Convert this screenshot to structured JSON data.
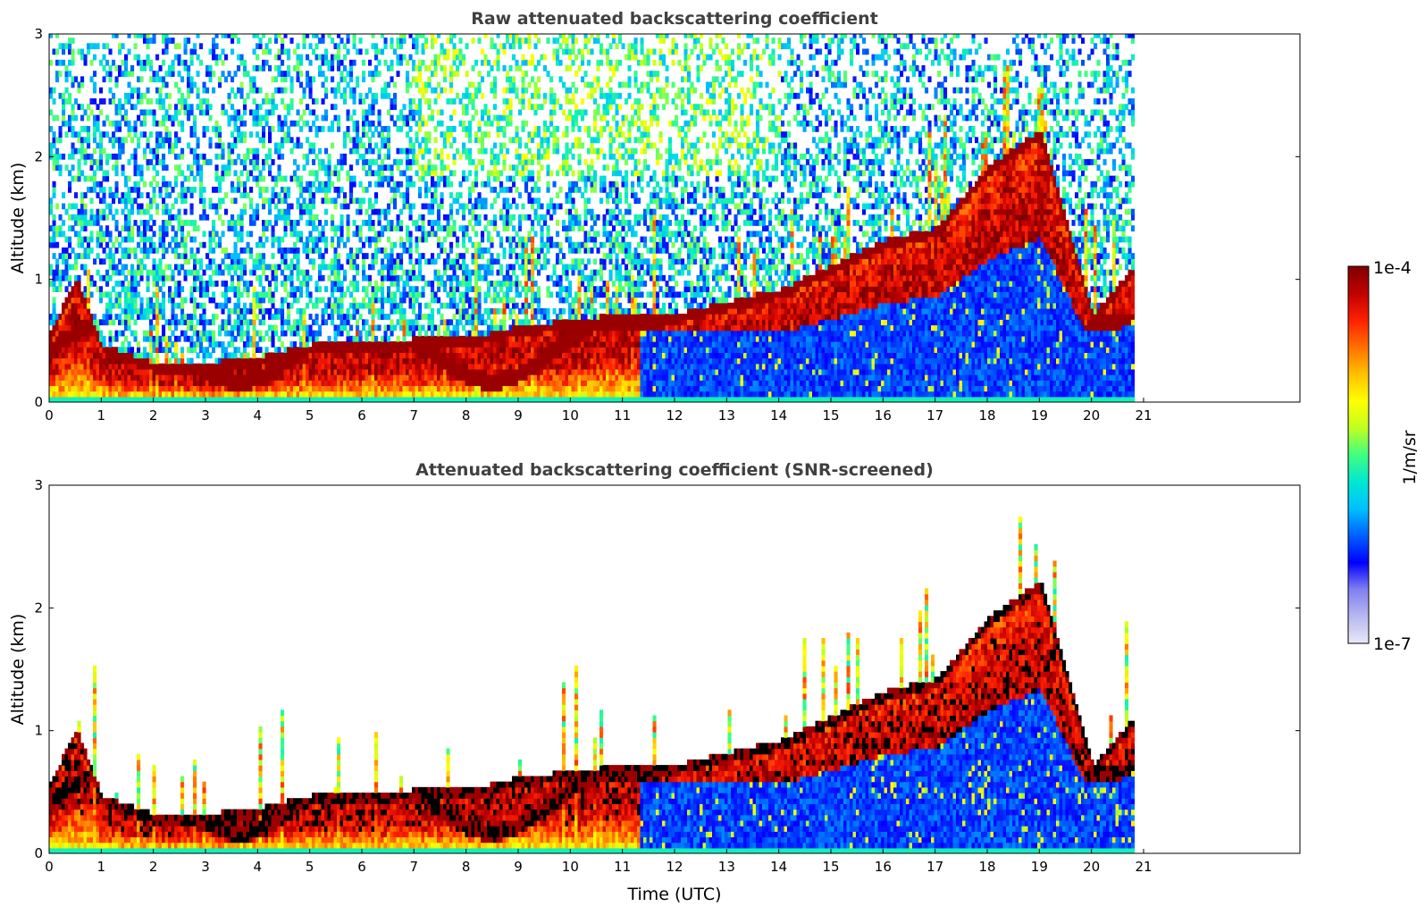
{
  "chart_data": [
    {
      "type": "heatmap",
      "title": "Raw attenuated backscattering coefficient",
      "xlabel": "",
      "ylabel": "Altitude (km)",
      "xlim": [
        0,
        24
      ],
      "ylim": [
        0,
        3
      ],
      "x_ticks": [
        0,
        1,
        2,
        3,
        4,
        5,
        6,
        7,
        8,
        9,
        10,
        11,
        12,
        13,
        14,
        15,
        16,
        17,
        18,
        19,
        20,
        21
      ],
      "y_ticks": [
        0,
        1,
        2,
        3
      ],
      "data_end_time": 20.8,
      "screened": false,
      "boundary_layer_top_km": [
        [
          0,
          0.55
        ],
        [
          0.5,
          1.0
        ],
        [
          1,
          0.45
        ],
        [
          2,
          0.3
        ],
        [
          3,
          0.3
        ],
        [
          4,
          0.35
        ],
        [
          5,
          0.45
        ],
        [
          6,
          0.45
        ],
        [
          7,
          0.5
        ],
        [
          8,
          0.5
        ],
        [
          9,
          0.6
        ],
        [
          10,
          0.65
        ],
        [
          11,
          0.7
        ],
        [
          12,
          0.7
        ],
        [
          13,
          0.8
        ],
        [
          14,
          0.9
        ],
        [
          15,
          1.1
        ],
        [
          16,
          1.3
        ],
        [
          17,
          1.4
        ],
        [
          18,
          1.9
        ],
        [
          19,
          2.2
        ],
        [
          20,
          0.7
        ],
        [
          20.8,
          1.1
        ]
      ]
    },
    {
      "type": "heatmap",
      "title": "Attenuated backscattering coefficient (SNR-screened)",
      "xlabel": "Time (UTC)",
      "ylabel": "Altitude (km)",
      "xlim": [
        0,
        24
      ],
      "ylim": [
        0,
        3
      ],
      "x_ticks": [
        0,
        1,
        2,
        3,
        4,
        5,
        6,
        7,
        8,
        9,
        10,
        11,
        12,
        13,
        14,
        15,
        16,
        17,
        18,
        19,
        20,
        21
      ],
      "y_ticks": [
        0,
        1,
        2,
        3
      ],
      "data_end_time": 20.8,
      "screened": true,
      "boundary_layer_top_km": [
        [
          0,
          0.55
        ],
        [
          0.5,
          1.0
        ],
        [
          1,
          0.45
        ],
        [
          2,
          0.3
        ],
        [
          3,
          0.3
        ],
        [
          4,
          0.35
        ],
        [
          5,
          0.45
        ],
        [
          6,
          0.45
        ],
        [
          7,
          0.5
        ],
        [
          8,
          0.5
        ],
        [
          9,
          0.6
        ],
        [
          10,
          0.65
        ],
        [
          11,
          0.7
        ],
        [
          12,
          0.7
        ],
        [
          13,
          0.8
        ],
        [
          14,
          0.9
        ],
        [
          15,
          1.1
        ],
        [
          16,
          1.3
        ],
        [
          17,
          1.4
        ],
        [
          18,
          1.9
        ],
        [
          19,
          2.2
        ],
        [
          20,
          0.7
        ],
        [
          20.8,
          1.1
        ]
      ]
    }
  ],
  "colorbar": {
    "label": "1/m/sr",
    "max_label": "1e-4",
    "min_label": "1e-7",
    "scale": "log",
    "colormap": "jet",
    "colors": [
      "#e8e8f8",
      "#b8b8f0",
      "#8080f0",
      "#0000ff",
      "#0060ff",
      "#00c0ff",
      "#00e8d0",
      "#40ff80",
      "#c0ff20",
      "#ffff00",
      "#ffc000",
      "#ff7000",
      "#ff2000",
      "#c00000",
      "#800000"
    ]
  }
}
